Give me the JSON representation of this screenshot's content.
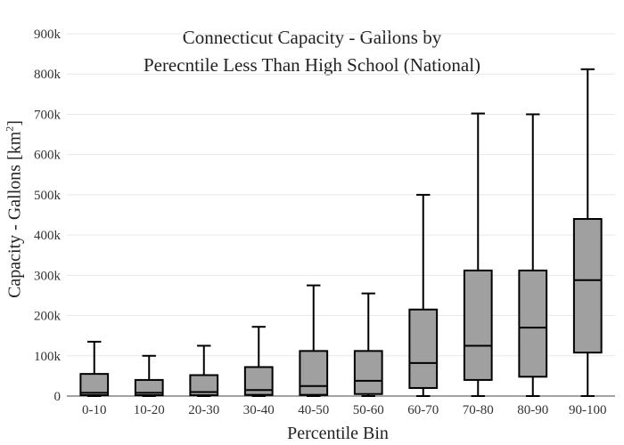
{
  "chart_data": {
    "type": "box",
    "title_line1": "Connecticut Capacity - Gallons by",
    "title_line2": "Perecntile Less Than High School (National)",
    "xlabel": "Percentile Bin",
    "ylabel": "Capacity - Gallons  [km",
    "ylabel_sup": "2",
    "ylabel_end": "]",
    "ylim": [
      0,
      900000
    ],
    "yticks": [
      {
        "value": 0,
        "label": "0"
      },
      {
        "value": 100000,
        "label": "100k"
      },
      {
        "value": 200000,
        "label": "200k"
      },
      {
        "value": 300000,
        "label": "300k"
      },
      {
        "value": 400000,
        "label": "400k"
      },
      {
        "value": 500000,
        "label": "500k"
      },
      {
        "value": 600000,
        "label": "600k"
      },
      {
        "value": 700000,
        "label": "700k"
      },
      {
        "value": 800000,
        "label": "800k"
      },
      {
        "value": 900000,
        "label": "900k"
      }
    ],
    "grid": true,
    "box_color": "#a0a0a0",
    "line_color": "#000000",
    "categories": [
      "0-10",
      "10-20",
      "20-30",
      "30-40",
      "40-50",
      "50-60",
      "60-70",
      "70-80",
      "80-90",
      "90-100"
    ],
    "boxes": [
      {
        "min": 0,
        "q1": 2000,
        "median": 8000,
        "q3": 55000,
        "max": 135000
      },
      {
        "min": 0,
        "q1": 2000,
        "median": 8000,
        "q3": 40000,
        "max": 100000
      },
      {
        "min": 0,
        "q1": 2000,
        "median": 10000,
        "q3": 52000,
        "max": 125000
      },
      {
        "min": 0,
        "q1": 3000,
        "median": 15000,
        "q3": 72000,
        "max": 172000
      },
      {
        "min": 0,
        "q1": 3000,
        "median": 25000,
        "q3": 112000,
        "max": 275000
      },
      {
        "min": 0,
        "q1": 5000,
        "median": 38000,
        "q3": 112000,
        "max": 255000
      },
      {
        "min": 0,
        "q1": 20000,
        "median": 82000,
        "q3": 215000,
        "max": 500000
      },
      {
        "min": 0,
        "q1": 40000,
        "median": 125000,
        "q3": 312000,
        "max": 702000
      },
      {
        "min": 0,
        "q1": 48000,
        "median": 170000,
        "q3": 312000,
        "max": 700000
      },
      {
        "min": 0,
        "q1": 108000,
        "median": 288000,
        "q3": 440000,
        "max": 812000
      }
    ]
  }
}
